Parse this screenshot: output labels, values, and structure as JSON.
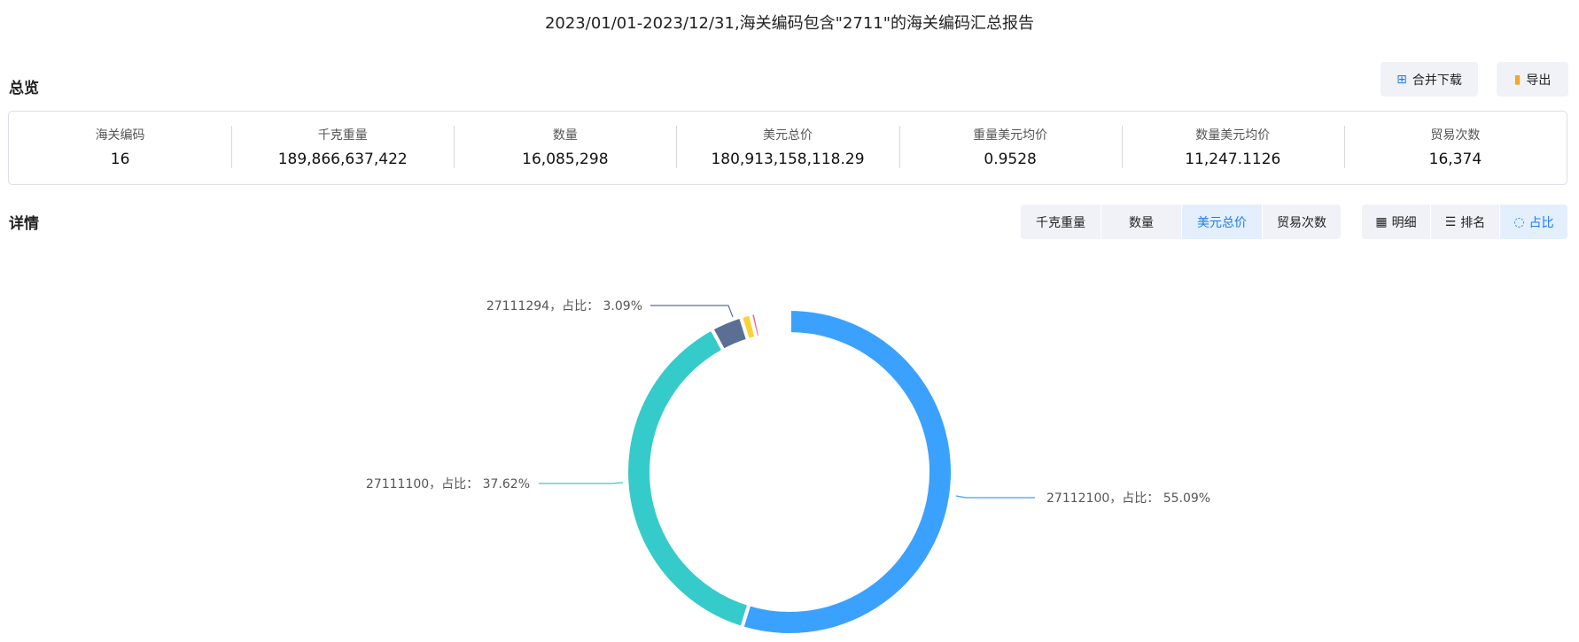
{
  "title": "2023/01/01-2023/12/31,海关编码包含\"2711\"的海关编码汇总报告",
  "overview": {
    "label": "总览",
    "merge_download": "合并下载",
    "export": "导出",
    "stats": [
      {
        "label": "海关编码",
        "value": "16"
      },
      {
        "label": "千克重量",
        "value": "189,866,637,422"
      },
      {
        "label": "数量",
        "value": "16,085,298"
      },
      {
        "label": "美元总价",
        "value": "180,913,158,118.29"
      },
      {
        "label": "重量美元均价",
        "value": "0.9528"
      },
      {
        "label": "数量美元均价",
        "value": "11,247.1126"
      },
      {
        "label": "贸易次数",
        "value": "16,374"
      }
    ]
  },
  "detail": {
    "label": "详情",
    "metric_tabs": [
      "千克重量",
      "数量",
      "美元总价",
      "贸易次数"
    ],
    "active_metric": "美元总价",
    "view_tabs": [
      {
        "label": "明细",
        "icon": "table-icon"
      },
      {
        "label": "排名",
        "icon": "ranking-icon"
      },
      {
        "label": "占比",
        "icon": "donut-icon"
      }
    ],
    "active_view": "占比"
  },
  "chart_data": {
    "type": "pie",
    "donut": true,
    "slices": [
      {
        "name": "27112100",
        "value": 55.09,
        "label": "27112100，占比： 55.09%",
        "color": "#3ba1ff"
      },
      {
        "name": "27111100",
        "value": 37.62,
        "label": "27111100，占比： 37.62%",
        "color": "#36cbcb"
      },
      {
        "name": "27111294",
        "value": 3.09,
        "label": "27111294，占比： 3.09%",
        "color": "#5a6f93"
      },
      {
        "value": 1.0,
        "color": "#fad337"
      },
      {
        "value": 0.5,
        "color": "#f2637b"
      },
      {
        "value": 0.3,
        "color": "#e8a0c8"
      },
      {
        "value": 0.3,
        "color": "#c8b8f5"
      },
      {
        "value": 0.3,
        "color": "#e0f0ff"
      },
      {
        "value": 0.3,
        "color": "#f0f8f0"
      },
      {
        "value": 0.3,
        "color": "#f5f5fb"
      },
      {
        "value": 0.3,
        "color": "#fafafa"
      },
      {
        "value": 0.3,
        "color": "#fbfbfb"
      },
      {
        "value": 0.3,
        "color": "#fcfcfc"
      },
      {
        "value": 0.3,
        "color": "#fdfdfd"
      },
      {
        "value": 0.3,
        "color": "#fefefe"
      },
      {
        "value": 0.38,
        "color": "#ffffff"
      }
    ]
  }
}
